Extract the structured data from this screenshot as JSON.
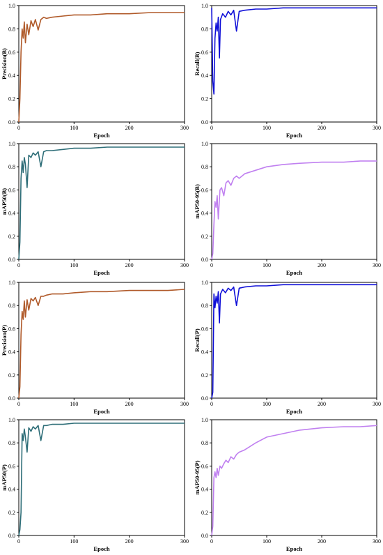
{
  "chart_data": [
    {
      "type": "line",
      "ylabel": "Precision(B)",
      "xlabel": "Epoch",
      "xlim": [
        0,
        300
      ],
      "ylim": [
        0,
        1.0
      ],
      "xticks": [
        0,
        100,
        200,
        300
      ],
      "yticks": [
        0.0,
        0.2,
        0.4,
        0.6,
        0.8,
        1.0
      ],
      "color": "#b05a2a",
      "series": [
        {
          "x": [
            0,
            2,
            4,
            6,
            8,
            10,
            12,
            15,
            18,
            22,
            26,
            30,
            35,
            40,
            45,
            50,
            60,
            80,
            100,
            130,
            160,
            200,
            240,
            270,
            300
          ],
          "values": [
            0.0,
            0.2,
            0.6,
            0.8,
            0.72,
            0.86,
            0.68,
            0.84,
            0.75,
            0.87,
            0.82,
            0.88,
            0.79,
            0.88,
            0.9,
            0.89,
            0.9,
            0.91,
            0.92,
            0.92,
            0.93,
            0.93,
            0.94,
            0.94,
            0.94
          ]
        }
      ]
    },
    {
      "type": "line",
      "ylabel": "Recall(B)",
      "xlabel": "Epoch",
      "xlim": [
        0,
        300
      ],
      "ylim": [
        0,
        1.0
      ],
      "xticks": [
        0,
        100,
        200,
        300
      ],
      "yticks": [
        0.0,
        0.2,
        0.4,
        0.6,
        0.8,
        1.0
      ],
      "color": "#1010d8",
      "series": [
        {
          "x": [
            0,
            2,
            4,
            6,
            8,
            10,
            12,
            14,
            16,
            20,
            25,
            30,
            35,
            40,
            45,
            50,
            60,
            80,
            100,
            130,
            160,
            200,
            240,
            270,
            300
          ],
          "values": [
            0.98,
            0.35,
            0.24,
            0.72,
            0.85,
            0.78,
            0.9,
            0.55,
            0.88,
            0.93,
            0.9,
            0.95,
            0.92,
            0.96,
            0.78,
            0.95,
            0.96,
            0.97,
            0.97,
            0.98,
            0.98,
            0.98,
            0.98,
            0.98,
            0.98
          ]
        }
      ]
    },
    {
      "type": "line",
      "ylabel": "mAP50(B)",
      "xlabel": "Epoch",
      "xlim": [
        0,
        300
      ],
      "ylim": [
        0,
        1.0
      ],
      "xticks": [
        0,
        100,
        200,
        300
      ],
      "yticks": [
        0.0,
        0.2,
        0.4,
        0.6,
        0.8,
        1.0
      ],
      "color": "#2e6e78",
      "series": [
        {
          "x": [
            0,
            2,
            4,
            6,
            8,
            10,
            12,
            15,
            18,
            22,
            26,
            30,
            35,
            40,
            45,
            50,
            60,
            80,
            100,
            130,
            160,
            200,
            240,
            270,
            300
          ],
          "values": [
            0.0,
            0.15,
            0.7,
            0.85,
            0.75,
            0.88,
            0.82,
            0.62,
            0.9,
            0.88,
            0.92,
            0.9,
            0.93,
            0.8,
            0.93,
            0.94,
            0.94,
            0.95,
            0.96,
            0.96,
            0.97,
            0.97,
            0.97,
            0.97,
            0.97
          ]
        }
      ]
    },
    {
      "type": "line",
      "ylabel": "mAP50-95(B)",
      "xlabel": "Epoch",
      "xlim": [
        0,
        300
      ],
      "ylim": [
        0,
        1.0
      ],
      "xticks": [
        0,
        100,
        200,
        300
      ],
      "yticks": [
        0.0,
        0.2,
        0.4,
        0.6,
        0.8,
        1.0
      ],
      "color": "#c080f0",
      "series": [
        {
          "x": [
            0,
            2,
            4,
            6,
            8,
            10,
            12,
            15,
            18,
            22,
            26,
            30,
            35,
            40,
            45,
            50,
            60,
            80,
            100,
            130,
            160,
            200,
            240,
            270,
            300
          ],
          "values": [
            0.0,
            0.05,
            0.3,
            0.5,
            0.45,
            0.55,
            0.35,
            0.6,
            0.62,
            0.55,
            0.66,
            0.68,
            0.64,
            0.7,
            0.72,
            0.7,
            0.74,
            0.77,
            0.8,
            0.82,
            0.83,
            0.84,
            0.84,
            0.85,
            0.85
          ]
        }
      ]
    },
    {
      "type": "line",
      "ylabel": "Precision(P)",
      "xlabel": "Epoch",
      "xlim": [
        0,
        300
      ],
      "ylim": [
        0,
        1.0
      ],
      "xticks": [
        0,
        100,
        200,
        300
      ],
      "yticks": [
        0.0,
        0.2,
        0.4,
        0.6,
        0.8,
        1.0
      ],
      "color": "#b05a2a",
      "series": [
        {
          "x": [
            0,
            2,
            4,
            6,
            8,
            10,
            12,
            15,
            18,
            22,
            26,
            30,
            35,
            40,
            45,
            50,
            60,
            80,
            100,
            130,
            160,
            200,
            240,
            270,
            300
          ],
          "values": [
            0.0,
            0.1,
            0.55,
            0.75,
            0.68,
            0.84,
            0.7,
            0.85,
            0.76,
            0.86,
            0.84,
            0.87,
            0.8,
            0.88,
            0.88,
            0.89,
            0.9,
            0.9,
            0.91,
            0.92,
            0.92,
            0.93,
            0.93,
            0.93,
            0.94
          ]
        }
      ]
    },
    {
      "type": "line",
      "ylabel": "Recall(P)",
      "xlabel": "Epoch",
      "xlim": [
        0,
        300
      ],
      "ylim": [
        0,
        1.0
      ],
      "xticks": [
        0,
        100,
        200,
        300
      ],
      "yticks": [
        0.0,
        0.2,
        0.4,
        0.6,
        0.8,
        1.0
      ],
      "color": "#1010d8",
      "series": [
        {
          "x": [
            0,
            2,
            4,
            6,
            8,
            10,
            12,
            14,
            16,
            20,
            25,
            30,
            35,
            40,
            45,
            50,
            60,
            80,
            100,
            130,
            160,
            200,
            240,
            270,
            300
          ],
          "values": [
            0.0,
            0.05,
            0.9,
            0.78,
            0.88,
            0.82,
            0.92,
            0.65,
            0.9,
            0.94,
            0.91,
            0.95,
            0.93,
            0.96,
            0.8,
            0.95,
            0.96,
            0.97,
            0.97,
            0.98,
            0.98,
            0.98,
            0.98,
            0.98,
            0.98
          ]
        }
      ]
    },
    {
      "type": "line",
      "ylabel": "mAP50(P)",
      "xlabel": "Epoch",
      "xlim": [
        0,
        300
      ],
      "ylim": [
        0,
        1.0
      ],
      "xticks": [
        0,
        100,
        200,
        300
      ],
      "yticks": [
        0.0,
        0.2,
        0.4,
        0.6,
        0.8,
        1.0
      ],
      "color": "#2e6e78",
      "series": [
        {
          "x": [
            0,
            2,
            4,
            6,
            8,
            10,
            12,
            15,
            18,
            22,
            26,
            30,
            35,
            40,
            45,
            50,
            60,
            80,
            100,
            130,
            160,
            200,
            240,
            270,
            300
          ],
          "values": [
            0.0,
            0.05,
            0.2,
            0.88,
            0.82,
            0.92,
            0.85,
            0.72,
            0.93,
            0.9,
            0.94,
            0.92,
            0.95,
            0.82,
            0.95,
            0.95,
            0.96,
            0.96,
            0.97,
            0.97,
            0.97,
            0.97,
            0.97,
            0.97,
            0.97
          ]
        }
      ]
    },
    {
      "type": "line",
      "ylabel": "mAP50-95(P)",
      "xlabel": "Epoch",
      "xlim": [
        0,
        300
      ],
      "ylim": [
        0,
        1.0
      ],
      "xticks": [
        0,
        100,
        200,
        300
      ],
      "yticks": [
        0.0,
        0.2,
        0.4,
        0.6,
        0.8,
        1.0
      ],
      "color": "#c080f0",
      "series": [
        {
          "x": [
            0,
            2,
            4,
            6,
            8,
            10,
            12,
            15,
            18,
            22,
            26,
            30,
            35,
            40,
            45,
            50,
            60,
            80,
            100,
            130,
            160,
            200,
            240,
            270,
            300
          ],
          "values": [
            0.0,
            0.08,
            0.5,
            0.55,
            0.5,
            0.58,
            0.52,
            0.6,
            0.58,
            0.62,
            0.65,
            0.63,
            0.68,
            0.66,
            0.7,
            0.72,
            0.74,
            0.8,
            0.85,
            0.88,
            0.91,
            0.93,
            0.94,
            0.94,
            0.95
          ]
        }
      ]
    }
  ]
}
